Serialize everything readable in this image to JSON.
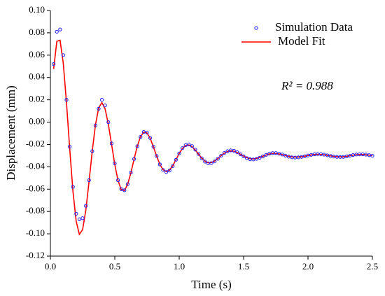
{
  "chart_data": {
    "type": "line",
    "xlabel": "Time (s)",
    "ylabel": "Displacement (mm)",
    "annotation": "R² = 0.988",
    "legend": "upper right",
    "xlim": [
      0,
      2.5
    ],
    "xticks": [
      {
        "value": 0,
        "label": "0.0"
      },
      0.5,
      {
        "value": 1,
        "label": "1.0"
      },
      1.5,
      {
        "value": 2,
        "label": "2.0"
      },
      2.5
    ],
    "ylim": [
      -0.12,
      0.1
    ],
    "yticks": [
      -0.12,
      {
        "value": -0.1,
        "label": "-0.10"
      },
      -0.08,
      -0.06,
      -0.04,
      -0.02,
      {
        "value": 0,
        "label": "0.00"
      },
      0.02,
      0.04,
      0.06,
      0.08,
      {
        "value": 0.1,
        "label": "0.10"
      }
    ],
    "x": [
      0.025,
      0.05,
      0.075,
      0.1,
      0.125,
      0.15,
      0.175,
      0.2,
      0.225,
      0.25,
      0.275,
      0.3,
      0.325,
      0.35,
      0.375,
      0.4,
      0.425,
      0.45,
      0.475,
      0.5,
      0.525,
      0.55,
      0.575,
      0.6,
      0.625,
      0.65,
      0.675,
      0.7,
      0.725,
      0.75,
      0.775,
      0.8,
      0.825,
      0.85,
      0.875,
      0.9,
      0.925,
      0.95,
      0.975,
      1.0,
      1.025,
      1.05,
      1.075,
      1.1,
      1.125,
      1.15,
      1.175,
      1.2,
      1.225,
      1.25,
      1.275,
      1.3,
      1.325,
      1.35,
      1.375,
      1.4,
      1.425,
      1.45,
      1.475,
      1.5,
      1.525,
      1.55,
      1.575,
      1.6,
      1.625,
      1.65,
      1.675,
      1.7,
      1.725,
      1.75,
      1.775,
      1.8,
      1.825,
      1.85,
      1.875,
      1.9,
      1.925,
      1.95,
      1.975,
      2.0,
      2.025,
      2.05,
      2.075,
      2.1,
      2.125,
      2.15,
      2.175,
      2.2,
      2.225,
      2.25,
      2.275,
      2.3,
      2.325,
      2.35,
      2.375,
      2.4,
      2.425,
      2.45,
      2.475,
      2.5
    ],
    "series": [
      {
        "name": "Simulation Data",
        "type": "scatter",
        "color": "#1f1fff",
        "values": [
          0.052,
          0.081,
          0.083,
          0.06,
          0.02,
          -0.022,
          -0.058,
          -0.082,
          -0.087,
          -0.086,
          -0.075,
          -0.052,
          -0.026,
          -0.003,
          0.012,
          0.02,
          0.015,
          0.0,
          -0.019,
          -0.037,
          -0.052,
          -0.06,
          -0.061,
          -0.0555,
          -0.0452,
          -0.033,
          -0.0216,
          -0.0132,
          -0.0088,
          -0.0093,
          -0.0142,
          -0.022,
          -0.0303,
          -0.0378,
          -0.0428,
          -0.0447,
          -0.0433,
          -0.0393,
          -0.0337,
          -0.028,
          -0.0233,
          -0.0206,
          -0.0199,
          -0.0214,
          -0.0246,
          -0.0285,
          -0.0324,
          -0.0353,
          -0.0369,
          -0.0367,
          -0.0352,
          -0.0328,
          -0.0301,
          -0.0276,
          -0.026,
          -0.0253,
          -0.0256,
          -0.0269,
          -0.0288,
          -0.0306,
          -0.0322,
          -0.0332,
          -0.0334,
          -0.0329,
          -0.0319,
          -0.0306,
          -0.0293,
          -0.0282,
          -0.0277,
          -0.0277,
          -0.0282,
          -0.029,
          -0.03,
          -0.0309,
          -0.0315,
          -0.0317,
          -0.0315,
          -0.0311,
          -0.0306,
          -0.0299,
          -0.0293,
          -0.0288,
          -0.0286,
          -0.0287,
          -0.0291,
          -0.0297,
          -0.0303,
          -0.0308,
          -0.0311,
          -0.0312,
          -0.0311,
          -0.0307,
          -0.0301,
          -0.0295,
          -0.029,
          -0.0288,
          -0.0288,
          -0.0291,
          -0.0296,
          -0.0301
        ]
      },
      {
        "name": "Model Fit",
        "type": "line",
        "color": "#ff0000",
        "values": [
          0.0476,
          0.0724,
          0.0733,
          0.0527,
          0.0172,
          -0.0239,
          -0.0618,
          -0.0887,
          -0.1005,
          -0.0963,
          -0.0789,
          -0.0533,
          -0.0259,
          -0.0023,
          0.0129,
          0.0175,
          0.0118,
          -0.002,
          -0.0199,
          -0.038,
          -0.0523,
          -0.0604,
          -0.0613,
          -0.0557,
          -0.0453,
          -0.033,
          -0.0214,
          -0.0129,
          -0.0089,
          -0.0097,
          -0.0146,
          -0.0222,
          -0.0305,
          -0.0378,
          -0.0426,
          -0.0443,
          -0.0429,
          -0.039,
          -0.0336,
          -0.0281,
          -0.0236,
          -0.021,
          -0.0205,
          -0.022,
          -0.025,
          -0.0287,
          -0.0323,
          -0.035,
          -0.0364,
          -0.0362,
          -0.0348,
          -0.0326,
          -0.0301,
          -0.0278,
          -0.0263,
          -0.0257,
          -0.026,
          -0.0272,
          -0.0288,
          -0.0304,
          -0.0318,
          -0.0327,
          -0.0329,
          -0.0325,
          -0.0316,
          -0.0305,
          -0.0294,
          -0.0285,
          -0.0281,
          -0.0281,
          -0.0285,
          -0.0291,
          -0.0299,
          -0.0306,
          -0.0311,
          -0.0313,
          -0.0312,
          -0.0309,
          -0.0305,
          -0.0299,
          -0.0294,
          -0.029,
          -0.0288,
          -0.0289,
          -0.0292,
          -0.0297,
          -0.0302,
          -0.0306,
          -0.0309,
          -0.031,
          -0.0309,
          -0.0306,
          -0.0301,
          -0.0296,
          -0.0292,
          -0.029,
          -0.029,
          -0.0292,
          -0.0296,
          -0.03
        ]
      }
    ]
  }
}
